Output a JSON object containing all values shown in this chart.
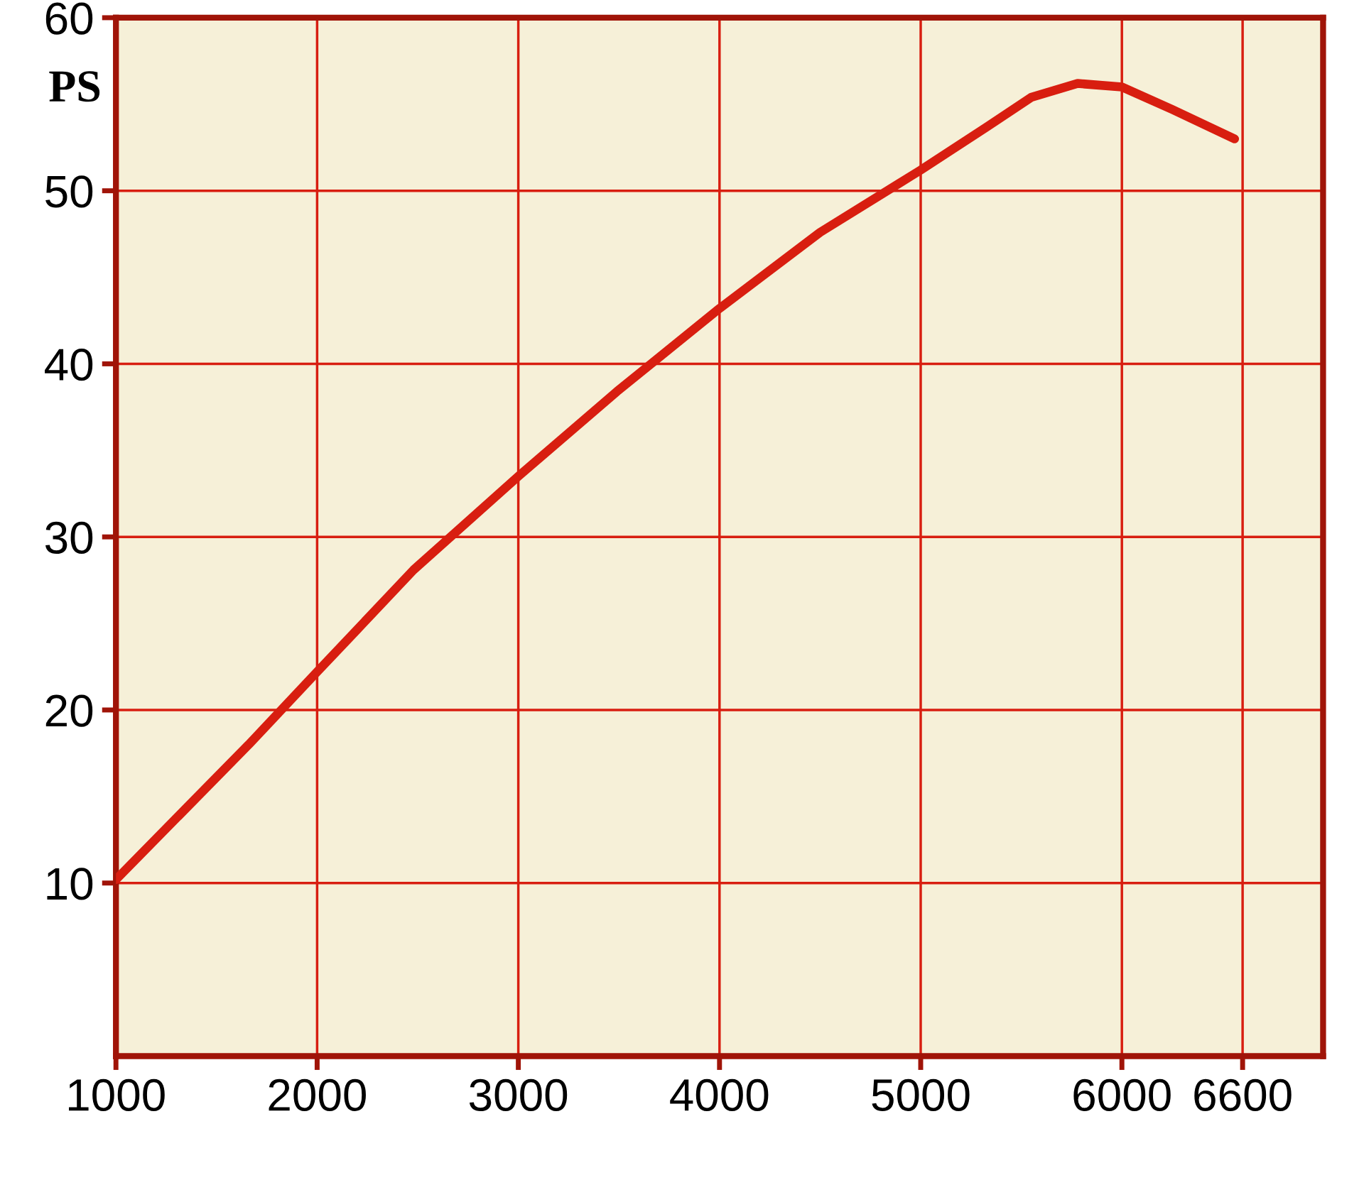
{
  "chart_data": {
    "type": "line",
    "ylabel": "PS",
    "x": [
      1000,
      1660,
      2000,
      2480,
      3000,
      3490,
      4000,
      4500,
      5000,
      5330,
      5550,
      5780,
      6000,
      6250,
      6560
    ],
    "series": [
      {
        "color": "#d81e10",
        "values": [
          10.2,
          18.0,
          22.2,
          28.1,
          33.5,
          38.4,
          43.2,
          47.6,
          51.2,
          53.7,
          55.4,
          56.2,
          56.0,
          54.7,
          53.0
        ]
      }
    ],
    "xlim": [
      1000,
      7000
    ],
    "xticks": [
      1000,
      2000,
      3000,
      4000,
      5000,
      6000,
      6600
    ],
    "ylim": [
      0,
      60
    ],
    "yticks": [
      10,
      20,
      30,
      40,
      50,
      60
    ],
    "grid": true,
    "line_style": "solid"
  }
}
